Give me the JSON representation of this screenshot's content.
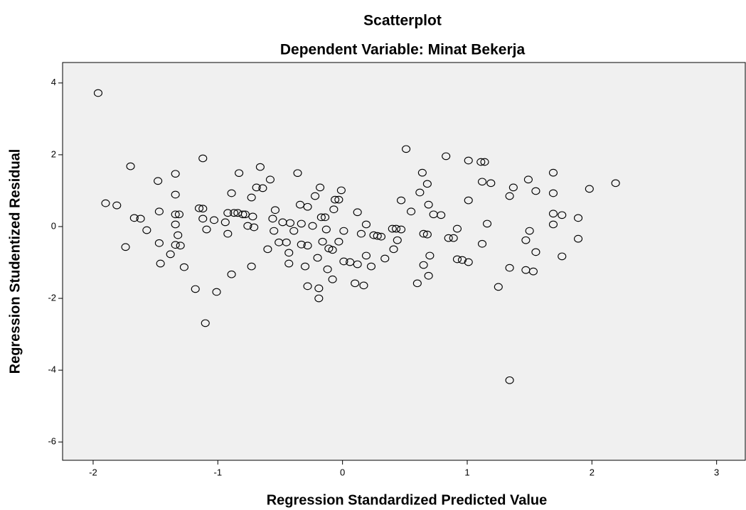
{
  "chart_data": {
    "type": "scatter",
    "title": "Scatterplot",
    "subtitle": "Dependent Variable: Minat Bekerja",
    "x_label": "Regression Standardized Predicted Value",
    "y_label": "Regression Studentized Residual",
    "xlim": [
      -2.245,
      3.23
    ],
    "ylim": [
      -6.51,
      4.57
    ],
    "xticks": [
      -2,
      -1,
      0,
      1,
      2,
      3
    ],
    "yticks": [
      -6,
      -4,
      -2,
      0,
      2,
      4
    ],
    "marker_color": "#000000",
    "background": "#f0f0f0",
    "grid": false,
    "x": [
      -1.96,
      -1.9,
      -1.81,
      -1.7,
      -1.74,
      -1.67,
      -1.62,
      -1.57,
      -1.48,
      -1.47,
      -1.47,
      -1.46,
      -1.38,
      -1.34,
      -1.34,
      -1.34,
      -1.34,
      -1.34,
      -1.32,
      -1.31,
      -1.3,
      -1.27,
      -1.18,
      -1.15,
      -1.12,
      -1.12,
      -1.12,
      -1.09,
      -1.1,
      -1.03,
      -1.01,
      -0.94,
      -0.92,
      -0.92,
      -0.89,
      -0.89,
      -0.87,
      -0.84,
      -0.83,
      -0.8,
      -0.78,
      -0.76,
      -0.73,
      -0.73,
      -0.72,
      -0.71,
      -0.69,
      -0.66,
      -0.64,
      -0.6,
      -0.58,
      -0.56,
      -0.54,
      -0.55,
      -0.51,
      -0.48,
      -0.45,
      -0.43,
      -0.43,
      -0.42,
      -0.39,
      -0.36,
      -0.34,
      -0.33,
      -0.33,
      -0.3,
      -0.28,
      -0.28,
      -0.28,
      -0.24,
      -0.22,
      -0.2,
      -0.19,
      -0.19,
      -0.18,
      -0.17,
      -0.16,
      -0.14,
      -0.13,
      -0.12,
      -0.11,
      -0.08,
      -0.08,
      -0.07,
      -0.06,
      -0.03,
      -0.03,
      -0.01,
      0.01,
      0.01,
      0.06,
      0.1,
      0.12,
      0.12,
      0.15,
      0.17,
      0.19,
      0.19,
      0.23,
      0.25,
      0.28,
      0.31,
      0.34,
      0.4,
      0.41,
      0.43,
      0.44,
      0.47,
      0.47,
      0.51,
      0.55,
      0.6,
      0.62,
      0.64,
      0.65,
      0.65,
      0.68,
      0.68,
      0.69,
      0.7,
      0.69,
      0.73,
      0.79,
      0.83,
      0.85,
      0.89,
      0.92,
      0.92,
      0.96,
      1.01,
      1.01,
      1.01,
      1.11,
      1.14,
      1.12,
      1.12,
      1.16,
      1.19,
      1.25,
      1.34,
      1.34,
      1.34,
      1.37,
      1.47,
      1.47,
      1.49,
      1.5,
      1.55,
      1.55,
      1.53,
      1.69,
      1.69,
      1.69,
      1.69,
      1.76,
      1.76,
      1.89,
      1.89,
      1.98,
      2.19
    ],
    "values": [
      3.72,
      0.65,
      0.59,
      1.68,
      -0.57,
      0.24,
      0.22,
      -0.1,
      1.27,
      0.42,
      -0.46,
      -1.03,
      -0.77,
      1.47,
      0.89,
      0.34,
      0.06,
      -0.51,
      -0.24,
      0.34,
      -0.53,
      -1.13,
      -1.74,
      0.51,
      0.5,
      1.9,
      0.22,
      -0.08,
      -2.69,
      0.18,
      -1.82,
      0.12,
      0.38,
      -0.2,
      0.93,
      -1.33,
      0.38,
      0.38,
      1.49,
      0.34,
      0.34,
      0.02,
      -1.11,
      0.81,
      0.28,
      -0.02,
      1.09,
      1.66,
      1.07,
      -0.63,
      1.31,
      0.22,
      0.46,
      -0.12,
      -0.44,
      0.12,
      -0.44,
      -1.03,
      -0.73,
      0.1,
      -0.12,
      1.49,
      0.61,
      0.08,
      -0.5,
      -1.11,
      0.55,
      -0.53,
      -1.66,
      0.02,
      0.85,
      -0.87,
      -1.72,
      -2.0,
      1.09,
      0.26,
      -0.42,
      0.26,
      -0.08,
      -1.19,
      -0.61,
      -0.65,
      -1.47,
      0.48,
      0.75,
      0.75,
      -0.42,
      1.01,
      -0.12,
      -0.97,
      -0.99,
      -1.58,
      0.4,
      -1.05,
      -0.2,
      -1.64,
      0.06,
      -0.81,
      -1.11,
      -0.24,
      -0.26,
      -0.28,
      -0.89,
      -0.06,
      -0.63,
      -0.06,
      -0.38,
      -0.08,
      0.73,
      2.16,
      0.42,
      -1.58,
      0.95,
      1.5,
      -0.2,
      -1.07,
      -0.22,
      1.19,
      0.61,
      -0.81,
      -1.37,
      0.34,
      0.32,
      1.96,
      -0.32,
      -0.32,
      -0.91,
      -0.06,
      -0.93,
      -0.99,
      0.73,
      1.84,
      1.8,
      1.8,
      1.25,
      -0.48,
      0.08,
      1.21,
      -1.68,
      0.85,
      -1.15,
      -4.28,
      1.09,
      -0.38,
      -1.21,
      1.31,
      -0.12,
      0.99,
      -0.71,
      -1.25,
      1.5,
      0.93,
      0.36,
      0.06,
      0.32,
      -0.83,
      0.24,
      -0.34,
      1.05,
      1.21
    ]
  }
}
